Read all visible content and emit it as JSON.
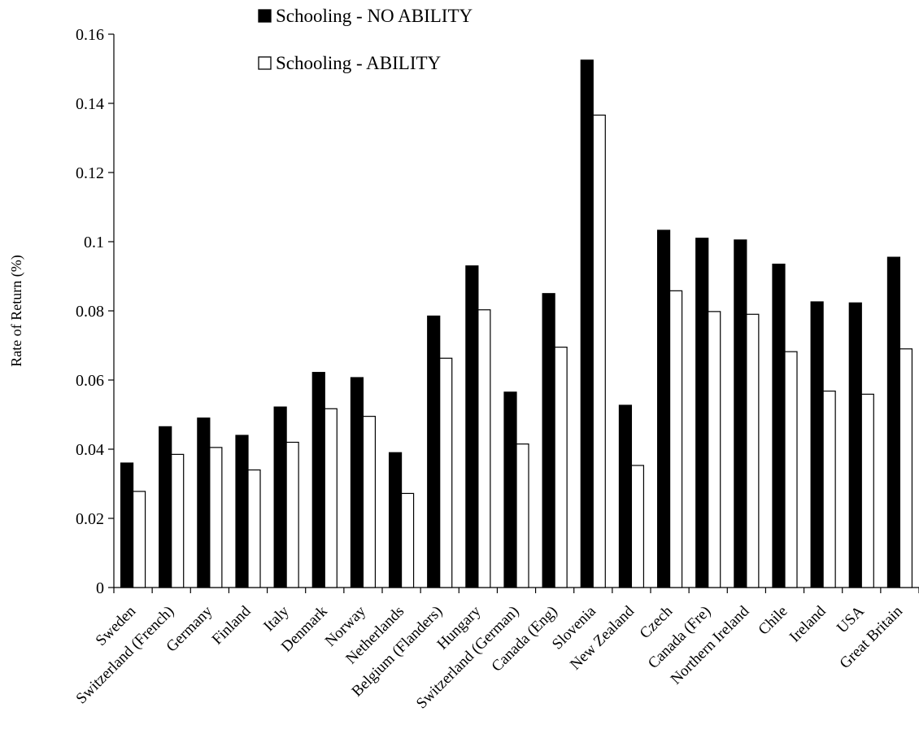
{
  "chart_data": {
    "type": "bar",
    "title": "",
    "xlabel": "",
    "ylabel": "Rate of Return (%)",
    "ylim": [
      0,
      0.16
    ],
    "yticks": [
      "0",
      "0.02",
      "0.04",
      "0.06",
      "0.08",
      "0.1",
      "0.12",
      "0.14",
      "0.16"
    ],
    "grid": false,
    "legend_position": "top",
    "categories": [
      "Sweden",
      "Switzerland (French)",
      "Germany",
      "Finland",
      "Italy",
      "Denmark",
      "Norway",
      "Netherlands",
      "Belgium (Flanders)",
      "Hungary",
      "Switzerland (German)",
      "Canada (Eng)",
      "Slovenia",
      "New Zealand",
      "Czech",
      "Canada (Fre)",
      "Northern Ireland",
      "Chile",
      "Ireland",
      "USA",
      "Great Britain"
    ],
    "series": [
      {
        "name": "Schooling - NO ABILITY",
        "color": "#000000",
        "values": [
          0.036,
          0.0465,
          0.049,
          0.044,
          0.0522,
          0.0622,
          0.0607,
          0.039,
          0.0785,
          0.093,
          0.0565,
          0.085,
          0.1525,
          0.0527,
          0.1033,
          0.101,
          0.1005,
          0.0935,
          0.0826,
          0.0823,
          0.0955
        ]
      },
      {
        "name": "Schooling - ABILITY",
        "color": "#ffffff",
        "values": [
          0.0278,
          0.0385,
          0.0405,
          0.034,
          0.042,
          0.0517,
          0.0495,
          0.0272,
          0.0663,
          0.0803,
          0.0415,
          0.0695,
          0.1366,
          0.0353,
          0.0858,
          0.0798,
          0.079,
          0.0682,
          0.0568,
          0.0559,
          0.069
        ]
      }
    ]
  }
}
